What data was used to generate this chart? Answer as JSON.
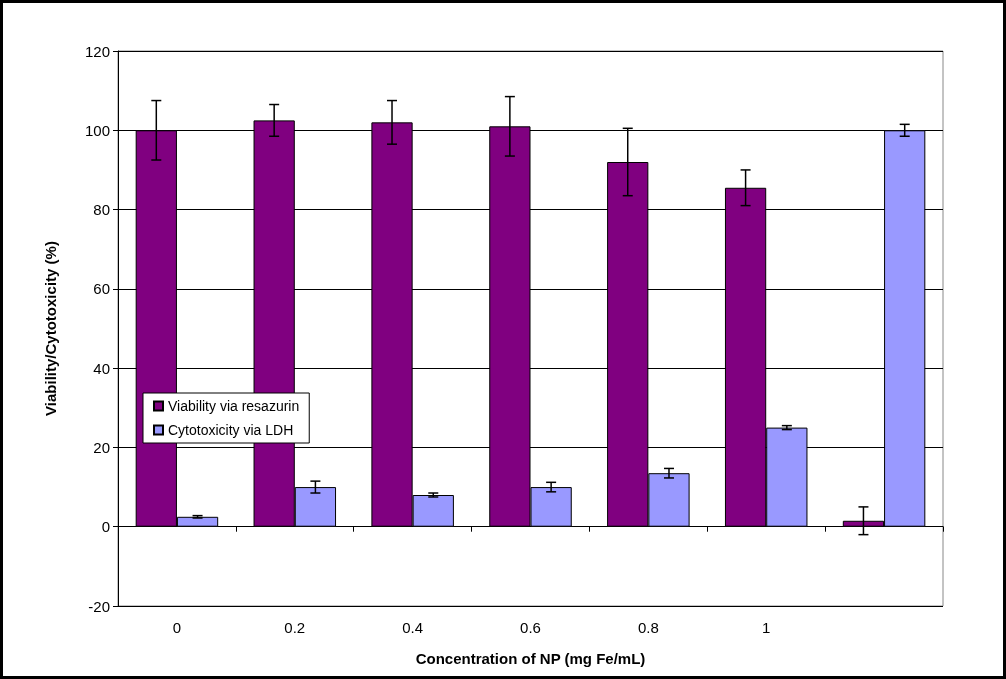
{
  "chart_data": {
    "type": "bar",
    "xlabel": "Concentration of NP (mg Fe/mL)",
    "ylabel": "Viability/Cytotoxicity (%)",
    "categories": [
      "0",
      "0.2",
      "0.4",
      "0.6",
      "0.8",
      "1",
      null
    ],
    "series": [
      {
        "name": "Viability via resazurin",
        "color": "#800080",
        "values": [
          100,
          102.5,
          102,
          101,
          92,
          85.5,
          1.5
        ],
        "errors": [
          7.5,
          4,
          5.5,
          7.5,
          8.5,
          4.5,
          3.5
        ]
      },
      {
        "name": "Cytotoxicity via LDH",
        "color": "#9999ff",
        "values": [
          2.5,
          10,
          8,
          10,
          13.5,
          25,
          100
        ],
        "errors": [
          0.3,
          1.5,
          0.5,
          1.2,
          1.2,
          0.5,
          1.5
        ]
      }
    ],
    "ylim": [
      -20,
      120
    ],
    "yticks": [
      -20,
      0,
      20,
      40,
      60,
      80,
      100,
      120
    ],
    "grid": "y",
    "legend": "left"
  }
}
